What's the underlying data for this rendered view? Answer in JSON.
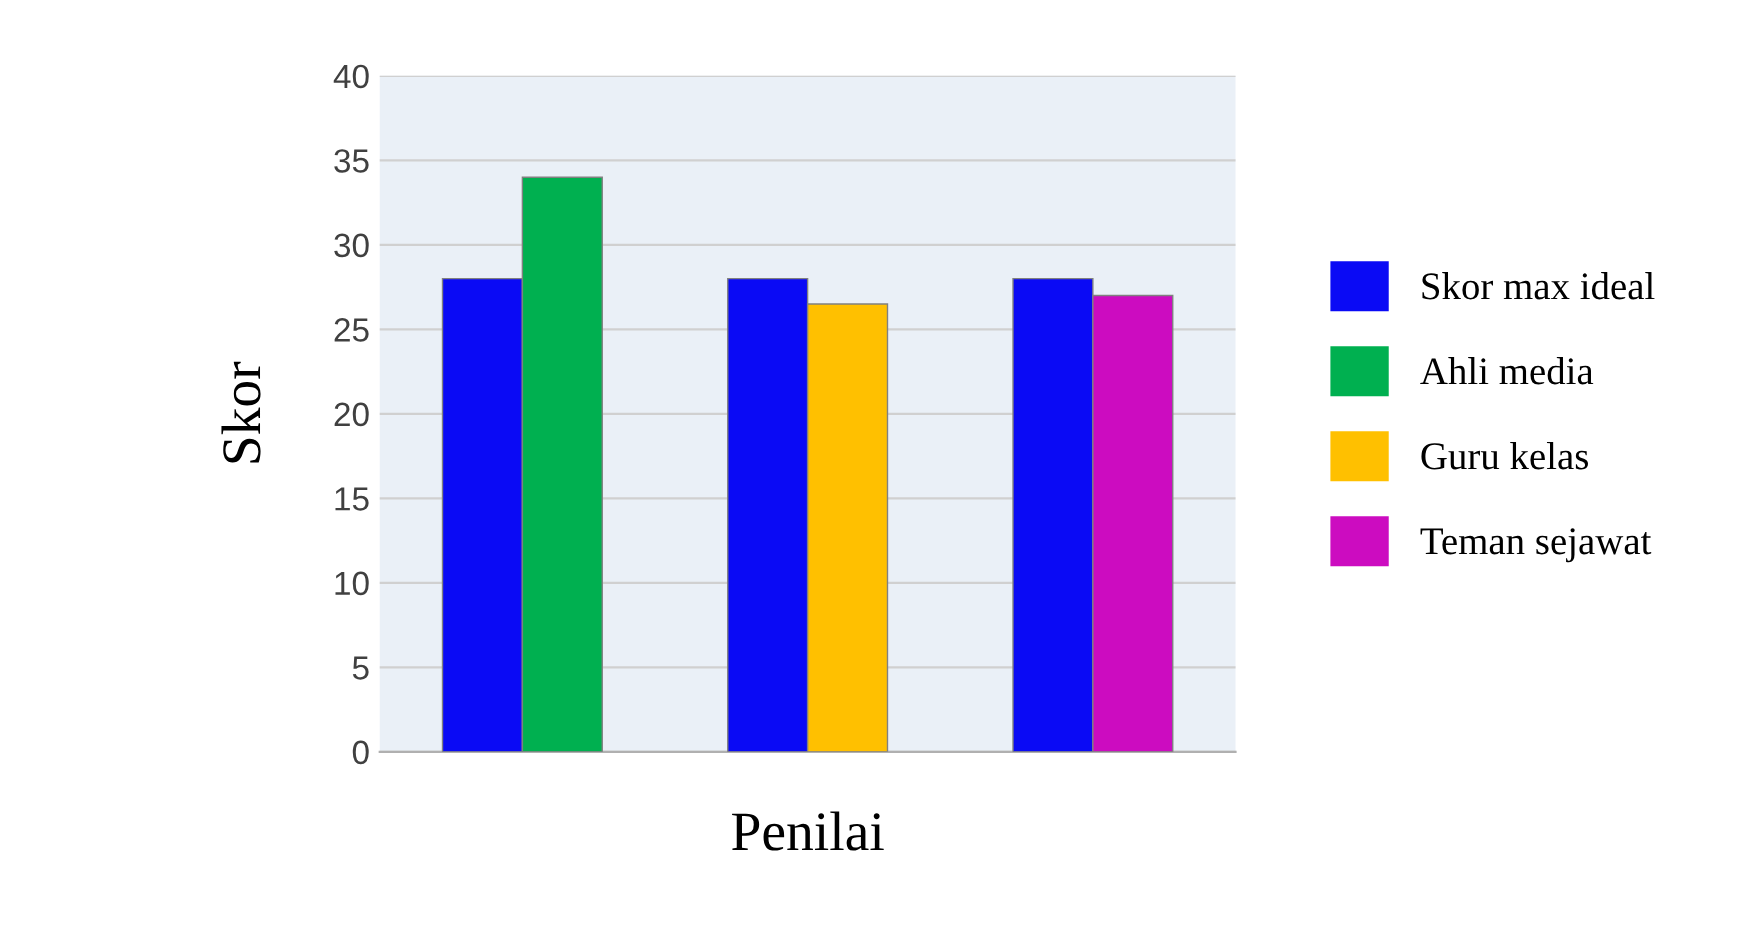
{
  "chart_data": {
    "type": "bar",
    "categories": [
      null,
      null,
      null
    ],
    "xlabel": "Penilai",
    "ylabel": "Skor",
    "ylim": [
      0,
      40
    ],
    "yticks": [
      0,
      5,
      10,
      15,
      20,
      25,
      30,
      35,
      40
    ],
    "grid": "y",
    "legend": "right",
    "series": [
      {
        "name": "Skor max ideal",
        "color": "#0a0af5",
        "values": [
          28,
          28,
          28
        ]
      },
      {
        "name": "Ahli media",
        "color": "#00b050",
        "values": [
          34,
          null,
          null
        ]
      },
      {
        "name": "Guru kelas",
        "color": "#ffc000",
        "values": [
          null,
          26.5,
          null
        ]
      },
      {
        "name": "Teman sejawat",
        "color": "#cc0cc0",
        "values": [
          null,
          null,
          27
        ]
      }
    ]
  }
}
